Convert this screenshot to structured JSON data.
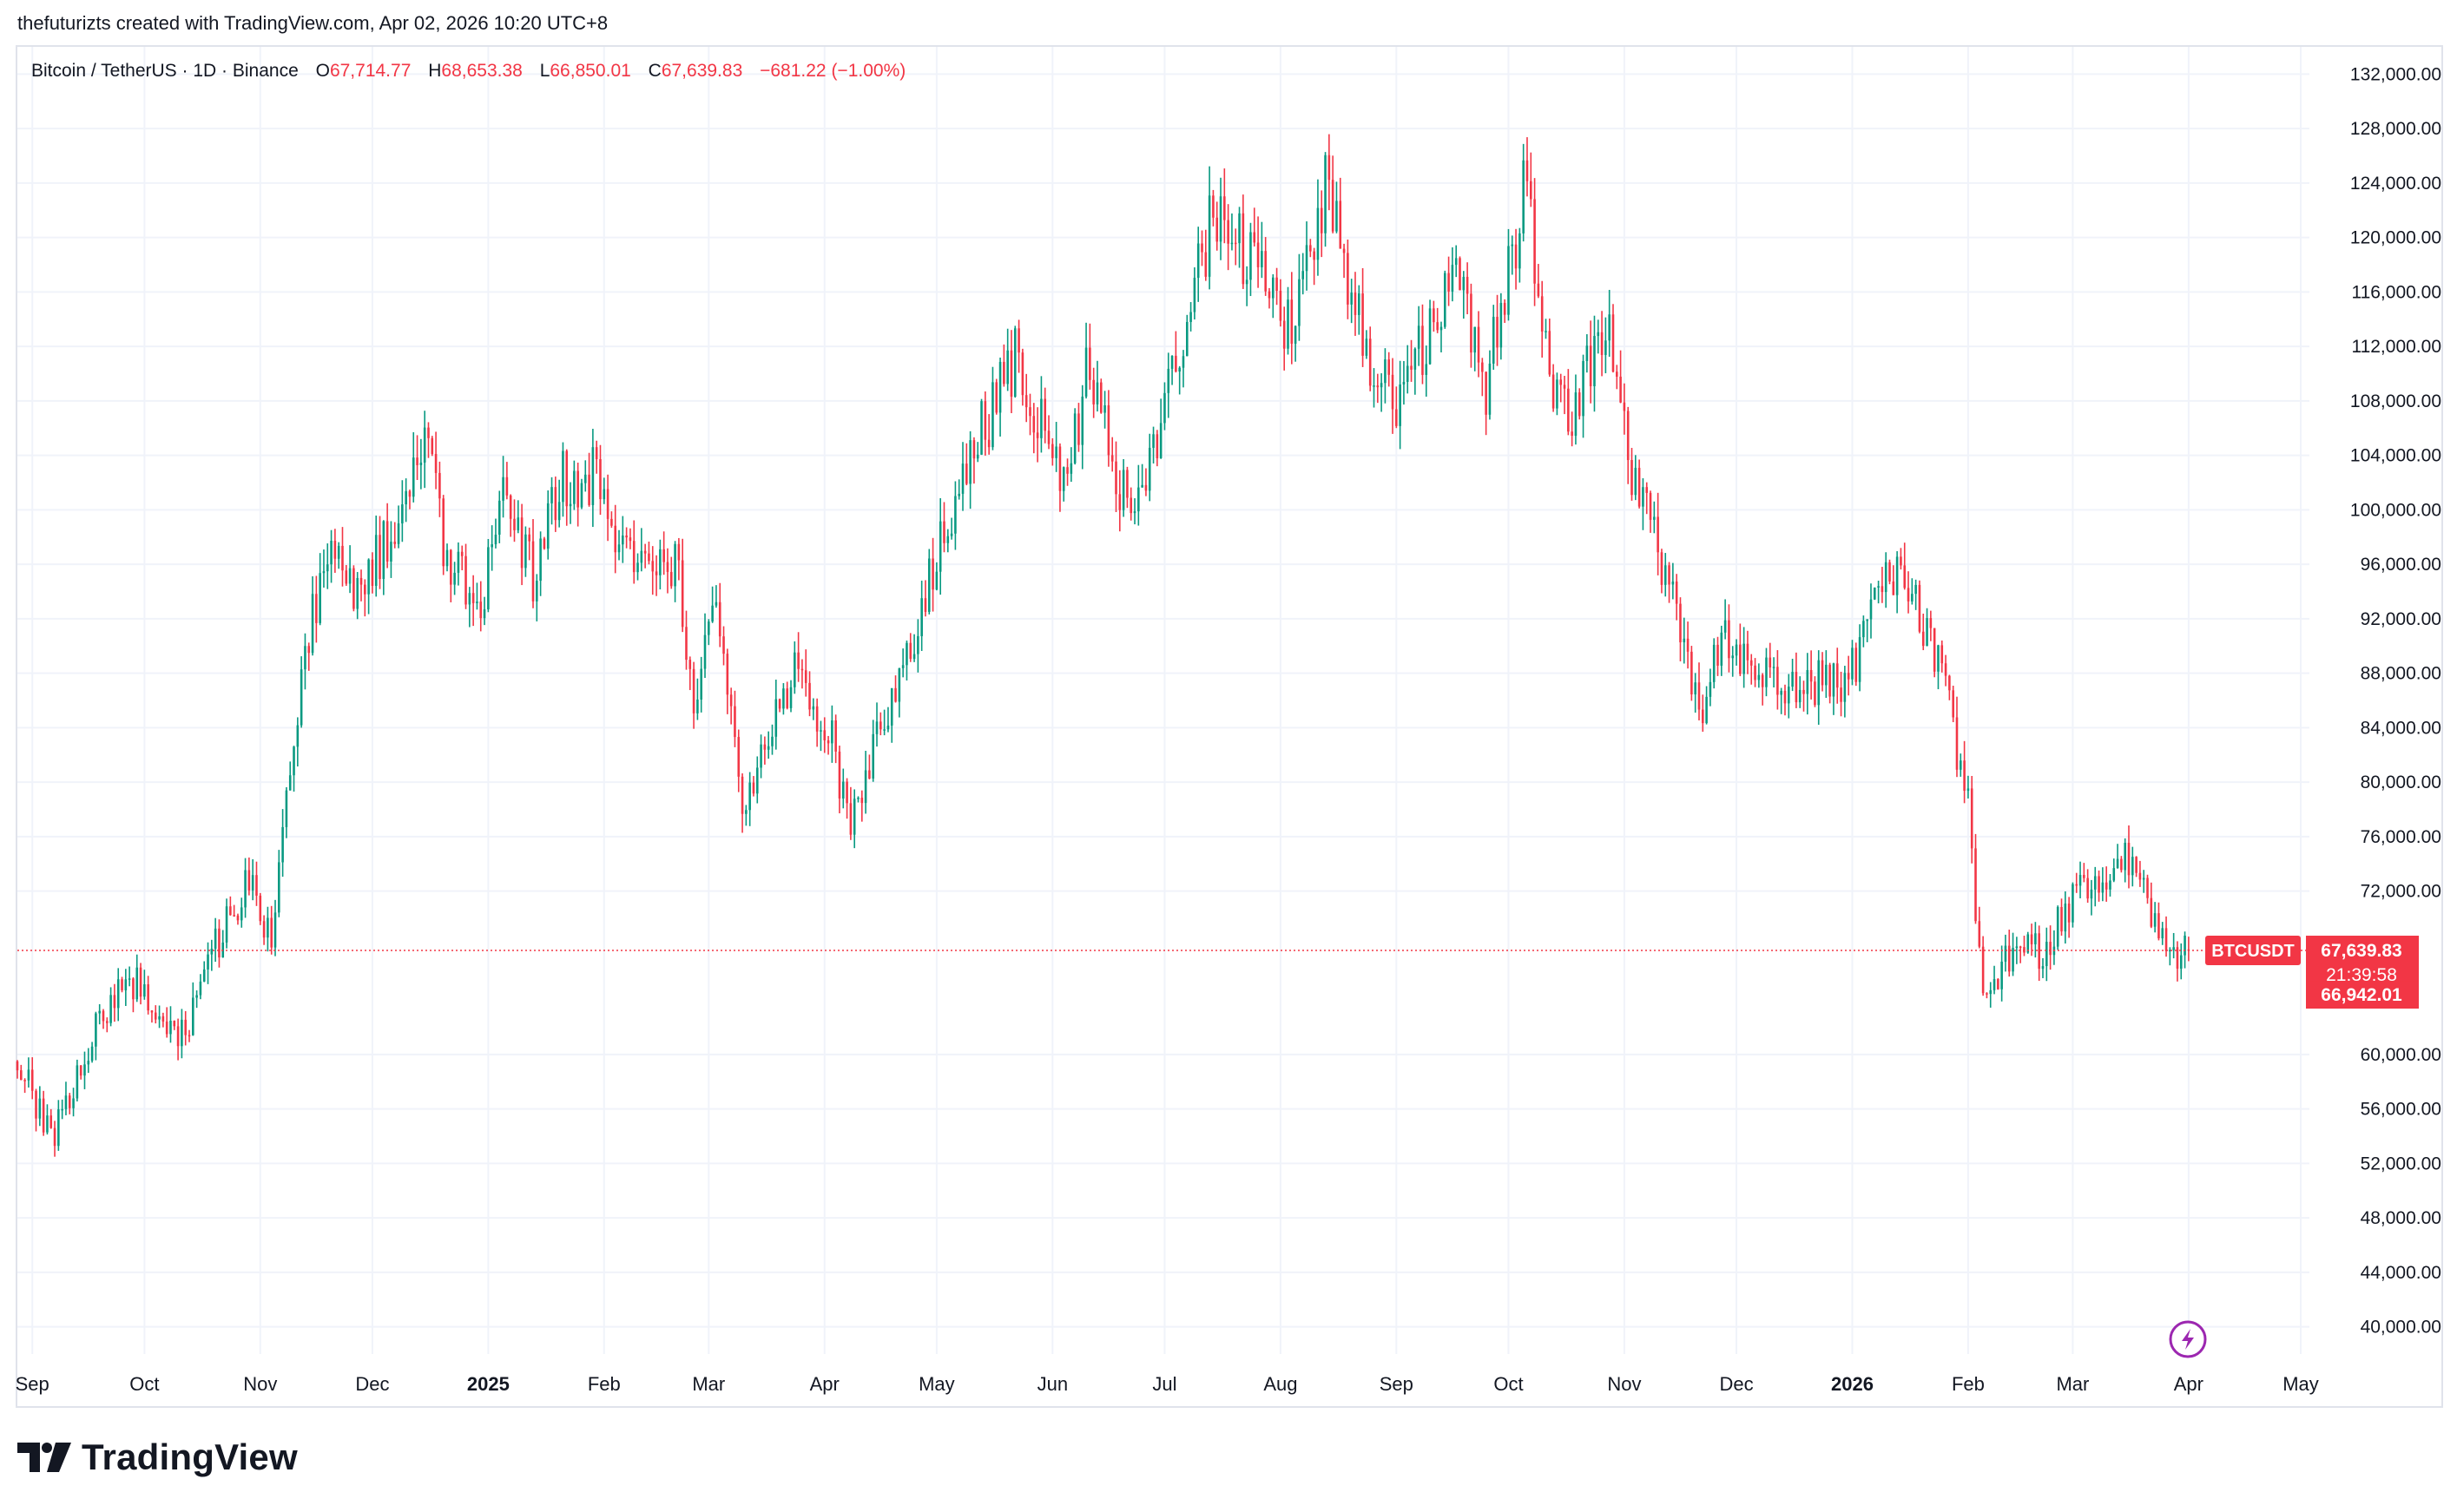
{
  "header": {
    "text": "thefuturizts created with TradingView.com, Apr 02, 2026 10:20 UTC+8"
  },
  "legend": {
    "symbol": "Bitcoin / TetherUS · 1D · Binance",
    "o_label": "O",
    "o_value": "67,714.77",
    "h_label": "H",
    "h_value": "68,653.38",
    "l_label": "L",
    "l_value": "66,850.01",
    "c_label": "C",
    "c_value": "67,639.83",
    "change": "−681.22 (−1.00%)"
  },
  "price_tags": {
    "symbol": "BTCUSDT",
    "last_price": "67,639.83",
    "countdown": "21:39:58",
    "low_price": "66,942.01"
  },
  "logo": {
    "text": "TradingView"
  },
  "colors": {
    "up": "#089981",
    "down": "#f23645",
    "grid": "#f0f3fa",
    "text": "#131722",
    "accent": "#9c27b0"
  },
  "icons": {
    "lightning": "lightning-icon",
    "logo": "tradingview-logo-icon"
  },
  "chart_data": {
    "type": "candlestick",
    "title": "Bitcoin / TetherUS · 1D · Binance",
    "ylim": [
      38000,
      134000
    ],
    "y_ticks": [
      "132,000.00",
      "128,000.00",
      "124,000.00",
      "120,000.00",
      "116,000.00",
      "112,000.00",
      "108,000.00",
      "104,000.00",
      "100,000.00",
      "96,000.00",
      "92,000.00",
      "88,000.00",
      "84,000.00",
      "80,000.00",
      "76,000.00",
      "72,000.00",
      "60,000.00",
      "56,000.00",
      "52,000.00",
      "48,000.00",
      "44,000.00",
      "40,000.00"
    ],
    "x_labels": [
      {
        "label": "Sep",
        "date": "2024-09-01",
        "bold": false
      },
      {
        "label": "Oct",
        "date": "2024-10-01",
        "bold": false
      },
      {
        "label": "Nov",
        "date": "2024-11-01",
        "bold": false
      },
      {
        "label": "Dec",
        "date": "2024-12-01",
        "bold": false
      },
      {
        "label": "2025",
        "date": "2025-01-01",
        "bold": true
      },
      {
        "label": "Feb",
        "date": "2025-02-01",
        "bold": false
      },
      {
        "label": "Mar",
        "date": "2025-03-01",
        "bold": false
      },
      {
        "label": "Apr",
        "date": "2025-04-01",
        "bold": false
      },
      {
        "label": "May",
        "date": "2025-05-01",
        "bold": false
      },
      {
        "label": "Jun",
        "date": "2025-06-01",
        "bold": false
      },
      {
        "label": "Jul",
        "date": "2025-07-01",
        "bold": false
      },
      {
        "label": "Aug",
        "date": "2025-08-01",
        "bold": false
      },
      {
        "label": "Sep",
        "date": "2025-09-01",
        "bold": false
      },
      {
        "label": "Oct",
        "date": "2025-10-01",
        "bold": false
      },
      {
        "label": "Nov",
        "date": "2025-11-01",
        "bold": false
      },
      {
        "label": "Dec",
        "date": "2025-12-01",
        "bold": false
      },
      {
        "label": "2026",
        "date": "2026-01-01",
        "bold": true
      },
      {
        "label": "Feb",
        "date": "2026-02-01",
        "bold": false
      },
      {
        "label": "Mar",
        "date": "2026-03-01",
        "bold": false
      },
      {
        "label": "Apr",
        "date": "2026-04-01",
        "bold": false
      },
      {
        "label": "May",
        "date": "2026-05-01",
        "bold": false
      }
    ],
    "x_range": [
      "2024-08-28",
      "2026-05-01"
    ],
    "series": [
      {
        "name": "BTCUSDT",
        "close_anchors": [
          [
            "2024-08-28",
            59500
          ],
          [
            "2024-09-06",
            53800
          ],
          [
            "2024-09-20",
            63000
          ],
          [
            "2024-09-27",
            65800
          ],
          [
            "2024-10-10",
            60500
          ],
          [
            "2024-10-21",
            68500
          ],
          [
            "2024-10-29",
            72500
          ],
          [
            "2024-11-04",
            68500
          ],
          [
            "2024-11-13",
            90000
          ],
          [
            "2024-11-22",
            98500
          ],
          [
            "2024-11-26",
            93000
          ],
          [
            "2024-12-05",
            98000
          ],
          [
            "2024-12-16",
            106000
          ],
          [
            "2024-12-20",
            97500
          ],
          [
            "2024-12-30",
            92500
          ],
          [
            "2025-01-06",
            102000
          ],
          [
            "2025-01-13",
            94500
          ],
          [
            "2025-01-20",
            102000
          ],
          [
            "2025-01-31",
            102500
          ],
          [
            "2025-02-03",
            97000
          ],
          [
            "2025-02-20",
            96500
          ],
          [
            "2025-02-26",
            84500
          ],
          [
            "2025-03-02",
            94000
          ],
          [
            "2025-03-10",
            78500
          ],
          [
            "2025-03-24",
            88000
          ],
          [
            "2025-04-03",
            83000
          ],
          [
            "2025-04-07",
            77000
          ],
          [
            "2025-04-21",
            87500
          ],
          [
            "2025-05-02",
            97000
          ],
          [
            "2025-05-08",
            103000
          ],
          [
            "2025-05-22",
            111000
          ],
          [
            "2025-06-05",
            101500
          ],
          [
            "2025-06-10",
            110000
          ],
          [
            "2025-06-22",
            99500
          ],
          [
            "2025-07-03",
            109500
          ],
          [
            "2025-07-14",
            121500
          ],
          [
            "2025-07-31",
            116000
          ],
          [
            "2025-08-03",
            113000
          ],
          [
            "2025-08-13",
            123500
          ],
          [
            "2025-08-25",
            110000
          ],
          [
            "2025-09-01",
            108500
          ],
          [
            "2025-09-18",
            117000
          ],
          [
            "2025-09-25",
            109000
          ],
          [
            "2025-10-06",
            124500
          ],
          [
            "2025-10-10",
            112000
          ],
          [
            "2025-10-17",
            106500
          ],
          [
            "2025-10-27",
            114000
          ],
          [
            "2025-11-04",
            101000
          ],
          [
            "2025-11-14",
            94500
          ],
          [
            "2025-11-21",
            84500
          ],
          [
            "2025-11-27",
            91500
          ],
          [
            "2025-12-05",
            89000
          ],
          [
            "2025-12-18",
            86500
          ],
          [
            "2025-12-31",
            88000
          ],
          [
            "2026-01-14",
            96500
          ],
          [
            "2026-01-24",
            89000
          ],
          [
            "2026-02-01",
            79000
          ],
          [
            "2026-02-05",
            63500
          ],
          [
            "2026-02-12",
            67000
          ],
          [
            "2026-02-20",
            67500
          ],
          [
            "2026-03-05",
            72500
          ],
          [
            "2026-03-16",
            74500
          ],
          [
            "2026-03-29",
            66500
          ],
          [
            "2026-04-01",
            67640
          ]
        ]
      }
    ],
    "last": {
      "open": 67714.77,
      "high": 68653.38,
      "low": 66850.01,
      "close": 67639.83,
      "change": -681.22,
      "change_pct": -1.0
    }
  }
}
